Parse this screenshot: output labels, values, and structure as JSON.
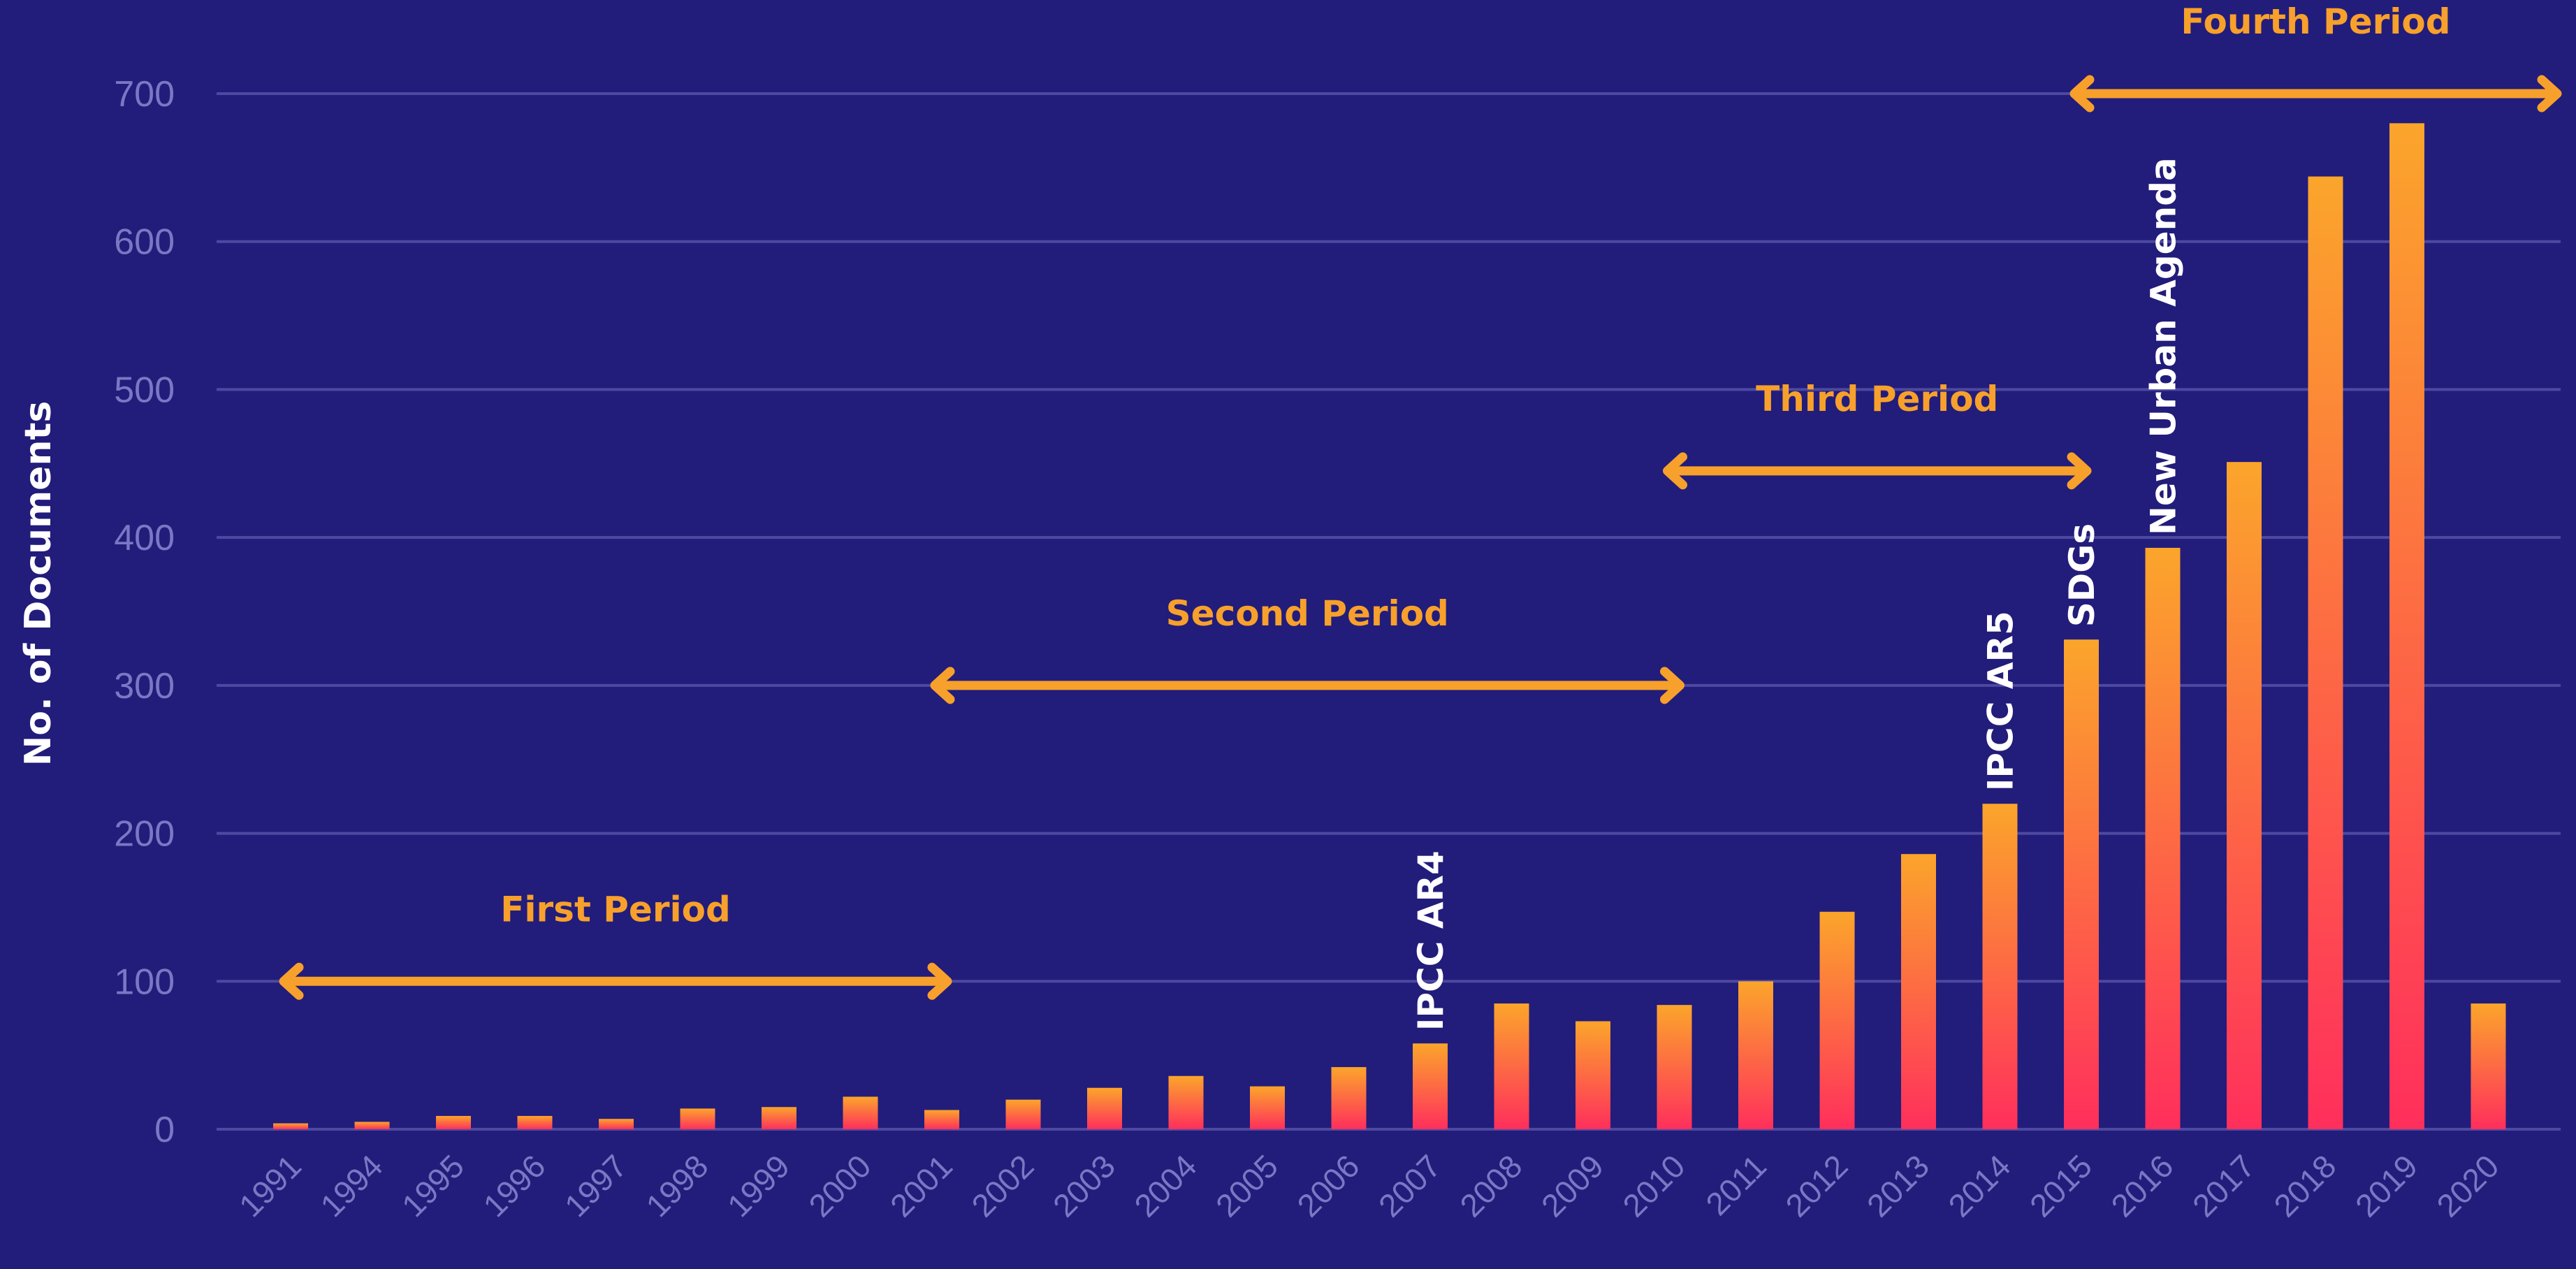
{
  "chart_data": {
    "type": "bar",
    "title": "",
    "xlabel": "",
    "ylabel": "No. of Documents",
    "ylim": [
      0,
      700
    ],
    "yticks": [
      0,
      100,
      200,
      300,
      400,
      500,
      600,
      700
    ],
    "grid": true,
    "categories": [
      "1991",
      "1994",
      "1995",
      "1996",
      "1997",
      "1998",
      "1999",
      "2000",
      "2001",
      "2002",
      "2003",
      "2004",
      "2005",
      "2006",
      "2007",
      "2008",
      "2009",
      "2010",
      "2011",
      "2012",
      "2013",
      "2014",
      "2015",
      "2016",
      "2017",
      "2018",
      "2019",
      "2020"
    ],
    "values": [
      4,
      5,
      9,
      9,
      7,
      14,
      15,
      22,
      13,
      20,
      28,
      36,
      29,
      42,
      58,
      85,
      73,
      84,
      100,
      147,
      186,
      220,
      331,
      393,
      451,
      644,
      680,
      85
    ],
    "bar_gradient": {
      "top": "#fba52b",
      "bottom": "#ff2f5c"
    },
    "periods": [
      {
        "label": "First Period",
        "from": "1991",
        "to": "2001",
        "y": 100
      },
      {
        "label": "Second Period",
        "from": "2001",
        "to": "2010",
        "y": 300
      },
      {
        "label": "Third Period",
        "from": "2010",
        "to": "2015",
        "y": 445
      },
      {
        "label": "Fourth Period",
        "from": "2015",
        "to": "2020",
        "y": 700
      }
    ],
    "event_annotations": [
      {
        "label": "IPCC AR4",
        "category": "2007"
      },
      {
        "label": "IPCC AR5",
        "category": "2014"
      },
      {
        "label": "SDGs",
        "category": "2015"
      },
      {
        "label": "New Urban Agenda",
        "category": "2016"
      }
    ],
    "colors": {
      "background": "#221c7b",
      "grid": "#4e49a0",
      "tick_text": "#7a78c4",
      "accent": "#f7a02b",
      "label_text": "#ffffff"
    }
  }
}
